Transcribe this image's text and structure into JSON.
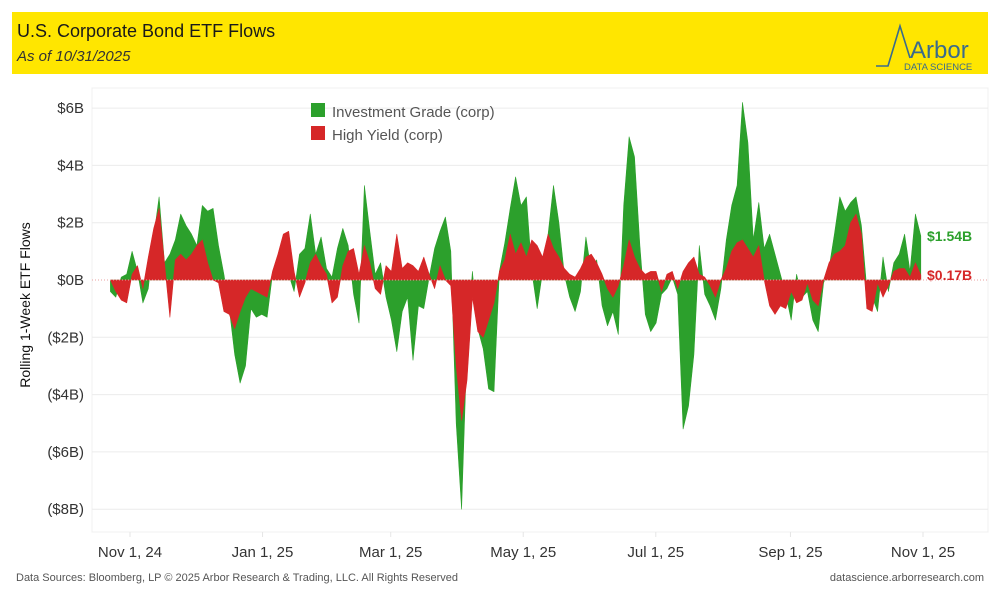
{
  "header": {
    "title": "U.S. Corporate Bond ETF Flows",
    "subtitle": "As of 10/31/2025",
    "logo_text": "Arbor",
    "logo_subtext": "DATA SCIENCE"
  },
  "footer": {
    "source": "Data Sources: Bloomberg, LP © 2025 Arbor Research & Trading, LLC. All Rights Reserved",
    "website": "datascience.arborresearch.com"
  },
  "colors": {
    "header_bg": "#ffe600",
    "investment_grade": "#2ca02c",
    "high_yield": "#d62728",
    "logo": "#3a6b8c"
  },
  "chart_data": {
    "type": "area",
    "title": "U.S. Corporate Bond ETF Flows",
    "subtitle": "As of 10/31/2025",
    "xlabel": "",
    "ylabel": "Rolling 1-Week ETF Flows",
    "ylim": [
      -8.3,
      6.7
    ],
    "y_ticks": [
      6,
      4,
      2,
      0,
      -2,
      -4,
      -6,
      -8
    ],
    "y_tick_labels": [
      "$6B",
      "$4B",
      "$2B",
      "$0B",
      "($2B)",
      "($4B)",
      "($6B)",
      "($8B)"
    ],
    "x_tick_dates": [
      "2024-11-01",
      "2025-01-01",
      "2025-03-01",
      "2025-05-01",
      "2025-07-01",
      "2025-09-01",
      "2025-11-01"
    ],
    "x_tick_labels": [
      "Nov 1, 24",
      "Jan 1, 25",
      "Mar 1, 25",
      "May 1, 25",
      "Jul 1, 25",
      "Sep 1, 25",
      "Nov 1, 25"
    ],
    "x_start": "2024-10-23",
    "x_end": "2025-10-31",
    "grid": true,
    "legend": "top-center",
    "units": "$B",
    "series": [
      {
        "name": "Investment Grade (corp)",
        "color": "#2ca02c",
        "values": [
          -0.4,
          -0.6,
          0.1,
          0.2,
          1.0,
          0.3,
          -0.8,
          -0.3,
          1.5,
          2.9,
          0.6,
          0.9,
          1.4,
          2.3,
          1.9,
          1.6,
          1.2,
          2.6,
          2.4,
          2.5,
          1.2,
          0.2,
          -1.0,
          -2.6,
          -3.6,
          -3.0,
          -1.0,
          -1.3,
          -1.2,
          -1.3,
          0.2,
          0.8,
          1.2,
          0.2,
          -0.4,
          0.9,
          1.1,
          2.3,
          0.9,
          1.5,
          0.4,
          0.1,
          1.1,
          1.8,
          1.2,
          -0.5,
          -1.5,
          3.3,
          1.7,
          0.2,
          0.6,
          -0.6,
          -1.4,
          -2.5,
          -1.1,
          -0.6,
          -2.8,
          -0.9,
          -1.0,
          0.1,
          1.1,
          1.7,
          2.2,
          1.0,
          -5.0,
          -8.0,
          -2.3,
          0.3,
          -1.7,
          -2.4,
          -3.8,
          -3.9,
          0.3,
          1.3,
          2.5,
          3.6,
          2.6,
          2.9,
          0.3,
          -1.0,
          0.3,
          1.6,
          3.3,
          2.0,
          0.2,
          -0.6,
          -1.1,
          -0.4,
          1.5,
          0.3,
          0.7,
          -0.9,
          -1.6,
          -1.1,
          -1.9,
          2.6,
          5.0,
          4.3,
          1.2,
          -1.2,
          -1.8,
          -1.5,
          -0.5,
          -0.3,
          0.1,
          -0.5,
          -5.2,
          -4.4,
          -2.6,
          1.2,
          -0.5,
          -0.9,
          -1.4,
          -0.3,
          1.4,
          2.6,
          3.3,
          6.2,
          4.8,
          1.4,
          2.7,
          1.1,
          1.6,
          0.9,
          0.2,
          -0.5,
          -1.4,
          0.2,
          -0.6,
          -0.4,
          -1.4,
          -1.8,
          -0.1,
          0.4,
          1.6,
          2.9,
          2.4,
          2.7,
          2.9,
          1.9,
          -0.3,
          -0.6,
          -1.1,
          0.8,
          -0.4,
          0.6,
          0.9,
          1.6,
          0.3,
          2.3,
          1.54
        ]
      },
      {
        "name": "High Yield (corp)",
        "color": "#d62728",
        "values": [
          0.0,
          -0.4,
          -0.7,
          -0.8,
          0.2,
          0.5,
          -0.3,
          0.8,
          1.8,
          2.5,
          0.6,
          -1.3,
          0.7,
          0.9,
          0.7,
          0.9,
          1.2,
          1.4,
          0.6,
          0.0,
          -0.1,
          -1.1,
          -1.2,
          -1.7,
          -1.1,
          -0.6,
          -0.3,
          -0.4,
          -0.5,
          -0.6,
          0.3,
          0.9,
          1.6,
          1.7,
          0.3,
          -0.6,
          -0.1,
          0.6,
          0.9,
          0.5,
          0.2,
          -0.8,
          -0.6,
          0.5,
          1.0,
          1.1,
          0.2,
          1.2,
          0.6,
          -0.3,
          -0.5,
          0.5,
          0.3,
          1.6,
          0.4,
          0.6,
          0.5,
          0.3,
          0.8,
          0.2,
          -0.3,
          0.5,
          0.0,
          -0.2,
          -3.0,
          -4.9,
          -3.5,
          -0.6,
          -1.8,
          -2.0,
          -1.4,
          -0.8,
          0.3,
          0.7,
          1.6,
          0.9,
          1.3,
          0.8,
          1.4,
          1.2,
          0.8,
          1.6,
          1.1,
          0.8,
          0.4,
          0.2,
          0.1,
          0.4,
          0.8,
          0.9,
          0.6,
          0.2,
          -0.3,
          -0.6,
          -0.2,
          0.5,
          1.4,
          0.8,
          0.4,
          0.2,
          0.3,
          0.3,
          -0.4,
          0.2,
          0.3,
          -0.3,
          0.3,
          0.6,
          0.8,
          0.2,
          0.1,
          -0.2,
          -0.6,
          0.0,
          0.4,
          1.0,
          1.3,
          1.4,
          1.1,
          0.8,
          1.2,
          0.0,
          -0.9,
          -1.2,
          -0.9,
          -1.0,
          -0.4,
          -0.8,
          -0.7,
          -0.1,
          -0.7,
          -0.9,
          0.0,
          0.6,
          0.9,
          1.0,
          1.2,
          2.0,
          2.3,
          1.6,
          -1.0,
          -1.1,
          -0.1,
          -0.6,
          -0.2,
          0.3,
          0.4,
          0.4,
          0.1,
          0.6,
          0.17
        ]
      }
    ],
    "end_labels": [
      {
        "series": "Investment Grade (corp)",
        "text": "$1.54B",
        "value": 1.54
      },
      {
        "series": "High Yield (corp)",
        "text": "$0.17B",
        "value": 0.17
      }
    ]
  }
}
